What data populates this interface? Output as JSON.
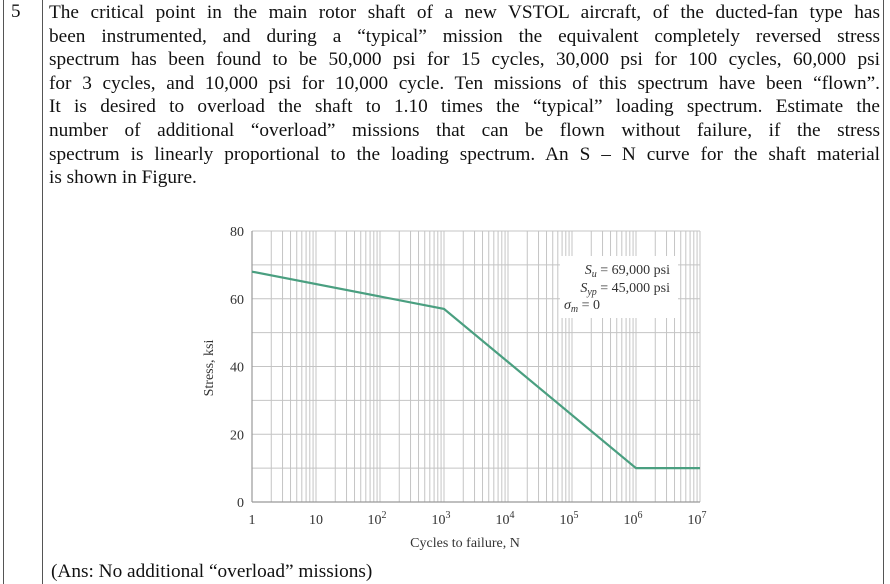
{
  "problem": {
    "number": "5",
    "lines": [
      "The critical point in the main rotor shaft of a new VSTOL aircraft, of the ducted-fan type has",
      "been instrumented, and during a “typical” mission the equivalent completely reversed stress",
      "spectrum has been found to be 50,000 psi for 15 cycles, 30,000 psi for 100 cycles, 60,000 psi",
      "for 3 cycles, and 10,000 psi for 10,000 cycle. Ten missions of this spectrum have been “flown”.",
      "It is desired to overload the shaft to 1.10 times the “typical” loading spectrum. Estimate the",
      "number of additional “overload” missions that can be flown without failure, if the stress",
      "spectrum is linearly proportional to the loading spectrum. An S – N curve for the shaft material",
      "is shown in Figure."
    ],
    "answer": "(Ans: No additional “overload” missions)"
  },
  "chart_data": {
    "type": "line",
    "xlabel": "Cycles to failure, N",
    "ylabel": "Stress, ksi",
    "x_scale": "log",
    "xlim": [
      1,
      10000000
    ],
    "ylim": [
      0,
      80
    ],
    "grid": true,
    "x_ticks": [
      {
        "value": 1,
        "base": "1",
        "exp": ""
      },
      {
        "value": 10,
        "base": "10",
        "exp": ""
      },
      {
        "value": 100,
        "base": "10",
        "exp": "2"
      },
      {
        "value": 1000,
        "base": "10",
        "exp": "3"
      },
      {
        "value": 10000,
        "base": "10",
        "exp": "4"
      },
      {
        "value": 100000,
        "base": "10",
        "exp": "5"
      },
      {
        "value": 1000000,
        "base": "10",
        "exp": "6"
      },
      {
        "value": 10000000,
        "base": "10",
        "exp": "7"
      }
    ],
    "y_ticks": [
      "0",
      "20",
      "40",
      "60",
      "80"
    ],
    "series": [
      {
        "color": "#4a9f80",
        "points": [
          [
            1,
            68
          ],
          [
            1000,
            57
          ],
          [
            1000000,
            10
          ],
          [
            10000000,
            10
          ]
        ]
      }
    ],
    "annotations": {
      "su": {
        "sym": "S",
        "sub": "u",
        "rest": " = 69,000 psi"
      },
      "syp": {
        "sym": "S",
        "sub": "yp",
        "rest": " = 45,000 psi"
      },
      "sigma": {
        "sym": "σ",
        "sub": "m",
        "rest": " = 0"
      }
    }
  }
}
